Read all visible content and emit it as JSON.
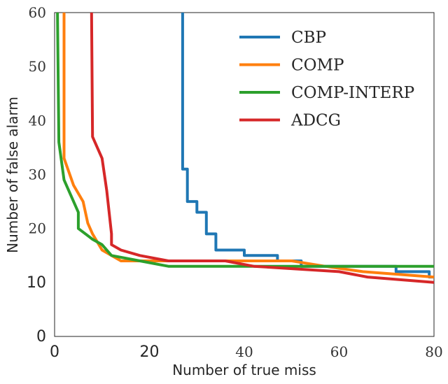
{
  "chart_data": {
    "type": "line",
    "xlabel": "Number of true miss",
    "ylabel": "Number of false alarm",
    "xlim": [
      0,
      80
    ],
    "ylim": [
      0,
      60
    ],
    "grid": false,
    "legend_position": "top-right",
    "xticks": [
      {
        "value": 0,
        "label": "0",
        "font": "sans"
      },
      {
        "value": 20,
        "label": "20",
        "font": "sans"
      },
      {
        "value": 40,
        "label": "40",
        "font": "serif"
      },
      {
        "value": 60,
        "label": "60",
        "font": "serif"
      },
      {
        "value": 80,
        "label": "80",
        "font": "serif"
      }
    ],
    "yticks": [
      {
        "value": 0,
        "label": "0",
        "font": "sans"
      },
      {
        "value": 10,
        "label": "10",
        "font": "sans"
      },
      {
        "value": 20,
        "label": "20",
        "font": "serif"
      },
      {
        "value": 30,
        "label": "30",
        "font": "serif"
      },
      {
        "value": 40,
        "label": "40",
        "font": "serif"
      },
      {
        "value": 50,
        "label": "50",
        "font": "serif"
      },
      {
        "value": 60,
        "label": "60",
        "font": "serif"
      }
    ],
    "series": [
      {
        "name": "CBP",
        "color": "#1f77b4",
        "points": [
          [
            27,
            60
          ],
          [
            27,
            31
          ],
          [
            28,
            31
          ],
          [
            28,
            25
          ],
          [
            30,
            25
          ],
          [
            30,
            23
          ],
          [
            32,
            23
          ],
          [
            32,
            19
          ],
          [
            34,
            19
          ],
          [
            34,
            16
          ],
          [
            40,
            16
          ],
          [
            40,
            15
          ],
          [
            47,
            15
          ],
          [
            47,
            14
          ],
          [
            52,
            14
          ],
          [
            52,
            13
          ],
          [
            72,
            13
          ],
          [
            72,
            12
          ],
          [
            79,
            12
          ],
          [
            79,
            11
          ],
          [
            80,
            11
          ]
        ]
      },
      {
        "name": "COMP",
        "color": "#ff7f0e",
        "points": [
          [
            2,
            60
          ],
          [
            2,
            33
          ],
          [
            4,
            28
          ],
          [
            6,
            25
          ],
          [
            7,
            21
          ],
          [
            8,
            19
          ],
          [
            10,
            16
          ],
          [
            14,
            14
          ],
          [
            20,
            14
          ],
          [
            30,
            14
          ],
          [
            50,
            14
          ],
          [
            57,
            13
          ],
          [
            65,
            12
          ],
          [
            80,
            11
          ]
        ]
      },
      {
        "name": "COMP-INTERP",
        "color": "#2ca02c",
        "points": [
          [
            0.6,
            60
          ],
          [
            0.9,
            36
          ],
          [
            2,
            29
          ],
          [
            5,
            23
          ],
          [
            5,
            20
          ],
          [
            8,
            18
          ],
          [
            10,
            17
          ],
          [
            12,
            15
          ],
          [
            18,
            14
          ],
          [
            24,
            13
          ],
          [
            40,
            13
          ],
          [
            60,
            13
          ],
          [
            80,
            13
          ]
        ]
      },
      {
        "name": "ADCG",
        "color": "#d62728",
        "points": [
          [
            7.8,
            60
          ],
          [
            8,
            37
          ],
          [
            10,
            33
          ],
          [
            11,
            27
          ],
          [
            12,
            19
          ],
          [
            12,
            17
          ],
          [
            14,
            16
          ],
          [
            18,
            15
          ],
          [
            24,
            14
          ],
          [
            36,
            14
          ],
          [
            42,
            13
          ],
          [
            60,
            12
          ],
          [
            66,
            11
          ],
          [
            80,
            10
          ]
        ]
      }
    ]
  }
}
